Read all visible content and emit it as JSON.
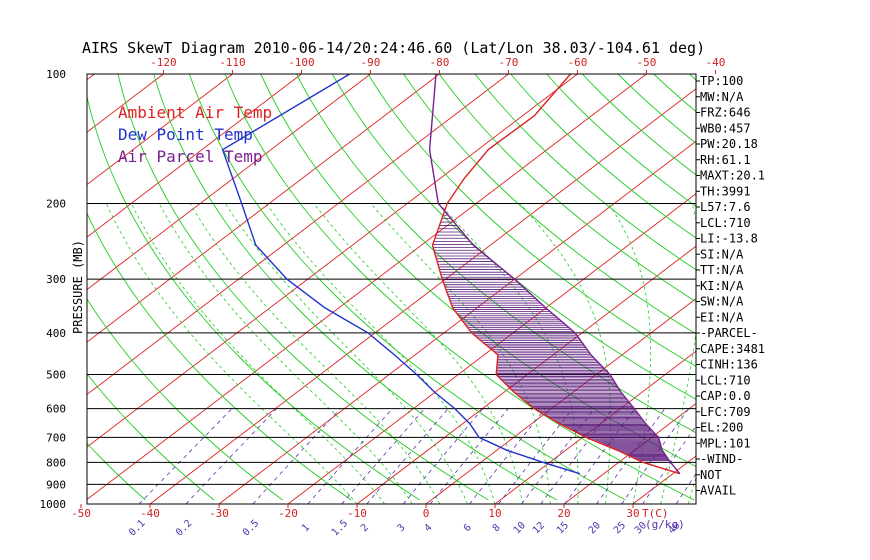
{
  "chart_data": {
    "type": "line",
    "title": "AIRS SkewT Diagram 2010-06-14/20:24:46.60 (Lat/Lon 38.03/-104.61 deg)",
    "ylabel": "PRESSURE (MB)",
    "xlabel_bottom_unit": "T(C)",
    "mixing_ratio_unit": "(g/kg)",
    "y_scale": "log",
    "ylim": [
      100,
      1000
    ],
    "pressure_ticks": [
      100,
      200,
      300,
      400,
      500,
      600,
      700,
      800,
      900,
      1000
    ],
    "top_temp_ticks": [
      -120,
      -110,
      -100,
      -90,
      -80,
      -70,
      -60,
      -50,
      -40
    ],
    "bottom_temp_ticks": [
      -50,
      -40,
      -30,
      -20,
      -10,
      0,
      10,
      20,
      30
    ],
    "mixing_ratio_labels": [
      "0.1",
      "0.2",
      "0.5",
      "1",
      "1.5",
      "2",
      "3",
      "4",
      "6",
      "8",
      "10",
      "12",
      "15",
      "20",
      "25",
      "30",
      "40"
    ],
    "mixing_ratio_values": [
      0.1,
      0.2,
      0.5,
      1,
      1.5,
      2,
      3,
      4,
      6,
      8,
      10,
      12,
      15,
      20,
      25,
      30,
      40
    ],
    "legend": [
      {
        "label": "Ambient Air Temp",
        "color": "#dd2222"
      },
      {
        "label": "Dew Point Temp",
        "color": "#2233cc"
      },
      {
        "label": "Air Parcel Temp",
        "color": "#7a2090"
      }
    ],
    "series": [
      {
        "name": "Ambient Air Temp",
        "color": "#dd2222",
        "pressure": [
          100,
          125,
          150,
          175,
          200,
          250,
          300,
          350,
          400,
          450,
          500,
          550,
          600,
          650,
          700,
          750,
          800,
          850
        ],
        "temp_c": [
          -61,
          -58.3,
          -58.5,
          -56.5,
          -54.2,
          -48.4,
          -40.5,
          -33.5,
          -26,
          -18,
          -14.5,
          -8.5,
          -2.5,
          4,
          10.5,
          17.5,
          23.5,
          31
        ]
      },
      {
        "name": "Dew Point Temp",
        "color": "#2233cc",
        "pressure": [
          100,
          150,
          200,
          250,
          300,
          350,
          400,
          450,
          500,
          550,
          600,
          650,
          700,
          750,
          800,
          850
        ],
        "temp_c": [
          -93,
          -97,
          -84,
          -74,
          -63,
          -52,
          -41,
          -33,
          -26,
          -20,
          -14,
          -9,
          -5,
          1.5,
          9,
          16.5
        ]
      },
      {
        "name": "Air Parcel Temp",
        "color": "#7a2090",
        "pressure": [
          100,
          150,
          200,
          250,
          300,
          350,
          400,
          450,
          500,
          550,
          600,
          650,
          700,
          750,
          800,
          850
        ],
        "temp_c": [
          -80.5,
          -67,
          -55.5,
          -42.5,
          -30,
          -20,
          -11,
          -4.5,
          2,
          7,
          12,
          16.5,
          21,
          24,
          27.5,
          31
        ]
      }
    ],
    "grid": true,
    "legend_position": "top-left"
  },
  "indices": [
    "TP:100",
    "MW:N/A",
    "FRZ:646",
    "WB0:457",
    "PW:20.18",
    "RH:61.1",
    "MAXT:20.1",
    "TH:3991",
    "L57:7.6",
    "LCL:710",
    "LI:-13.8",
    "SI:N/A",
    "TT:N/A",
    "KI:N/A",
    "SW:N/A",
    "EI:N/A",
    "-PARCEL-",
    "CAPE:3481",
    "CINH:136",
    "LCL:710",
    "CAP:0.0",
    "LFC:709",
    "EL:200",
    "MPL:101",
    "-WIND-",
    "NOT",
    "AVAIL"
  ],
  "colors": {
    "isotherm": "#dd2222",
    "dry_adiabat": "#22cc22",
    "moist_adiabat": "#22cc22",
    "mixing_ratio": "#5533aa",
    "hatch": "#5a1a7a",
    "isobar": "#000000"
  }
}
